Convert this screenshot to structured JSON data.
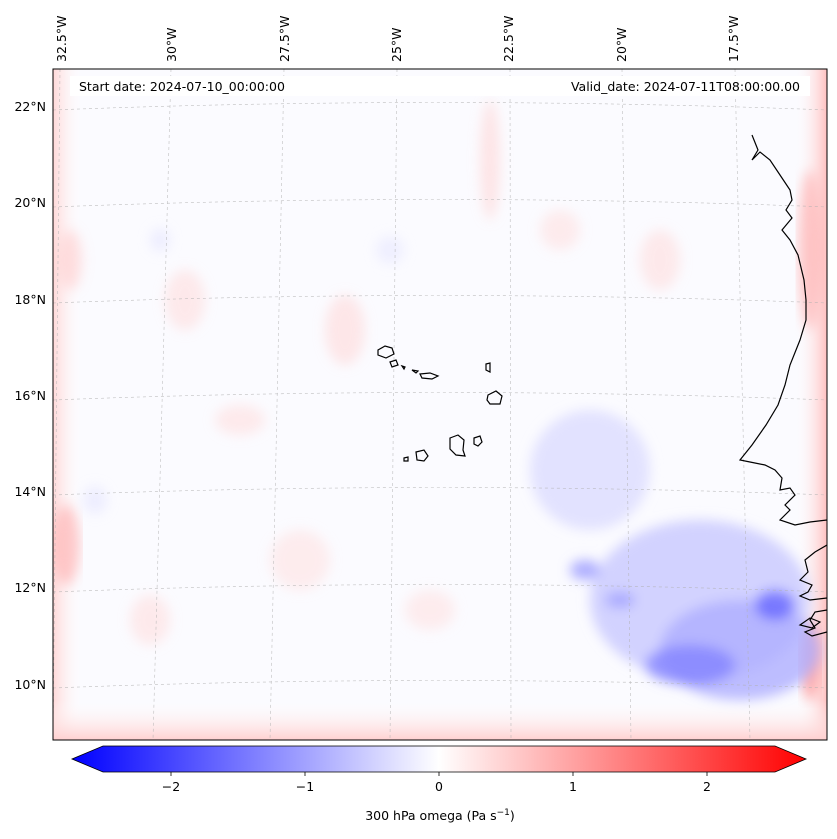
{
  "map": {
    "start_label": "Start date: 2024-07-10_00:00:00",
    "valid_label": "Valid_date: 2024-07-11T08:00:00.00",
    "lon_labels": [
      "32.5°W",
      "30°W",
      "27.5°W",
      "25°W",
      "22.5°W",
      "20°W",
      "17.5°W"
    ],
    "lat_labels": [
      "22°N",
      "20°N",
      "18°N",
      "16°N",
      "14°N",
      "12°N",
      "10°N"
    ],
    "colors": {
      "negative": "#0000ff",
      "zero": "#ffffff",
      "positive": "#ff0000",
      "coast": "#000000",
      "grid": "#b0b0b0"
    }
  },
  "colorbar": {
    "label_main": "300 hPa omega (Pa s",
    "label_sup": "−1",
    "label_close": ")",
    "ticks": [
      "−2",
      "−1",
      "0",
      "1",
      "2"
    ],
    "range": [
      -2.75,
      2.75
    ]
  }
}
